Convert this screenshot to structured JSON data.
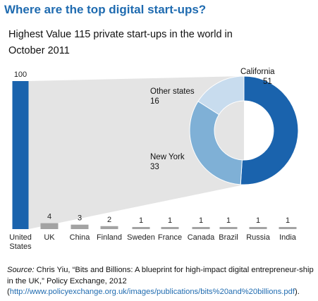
{
  "header": {
    "title": "Where are the top digital start-ups?",
    "subtitle": "Highest Value 115 private start-ups in the world in October 2011"
  },
  "chart_data": [
    {
      "type": "bar",
      "categories": [
        "United States",
        "UK",
        "China",
        "Finland",
        "Sweden",
        "France",
        "Canada",
        "Brazil",
        "Russia",
        "India"
      ],
      "category_lines": [
        [
          "United",
          "States"
        ],
        [
          "UK"
        ],
        [
          "China"
        ],
        [
          "Finland"
        ],
        [
          "Sweden"
        ],
        [
          "France"
        ],
        [
          "Canada"
        ],
        [
          "Brazil"
        ],
        [
          "Russia"
        ],
        [
          "India"
        ]
      ],
      "values": [
        100,
        4,
        3,
        2,
        1,
        1,
        1,
        1,
        1,
        1
      ],
      "data_labels": [
        "100",
        "4",
        "3",
        "2",
        "1",
        "1",
        "1",
        "1",
        "1",
        "1"
      ],
      "ylim": [
        0,
        100
      ],
      "colors": {
        "highlight": "#1a63ad",
        "bar": "#a3a3a3",
        "connector": "#e4e4e4"
      }
    },
    {
      "type": "pie",
      "variant": "donut",
      "labels": [
        "California",
        "New York",
        "Other states"
      ],
      "values": [
        51,
        33,
        16
      ],
      "value_labels": [
        "51",
        "33",
        "16"
      ],
      "colors": [
        "#1a63ad",
        "#7fb0d6",
        "#c8dcee"
      ]
    }
  ],
  "source": {
    "label": "Source:",
    "text": " Chris Yiu, “Bits and Billions: A blueprint for high-impact digital entrepreneur-ship in the UK,” Policy Exchange, 2012 (",
    "link": "http://www.policyexchange.org.uk/images/publications/bits%20and%20billions.pdf",
    "end": ")."
  }
}
